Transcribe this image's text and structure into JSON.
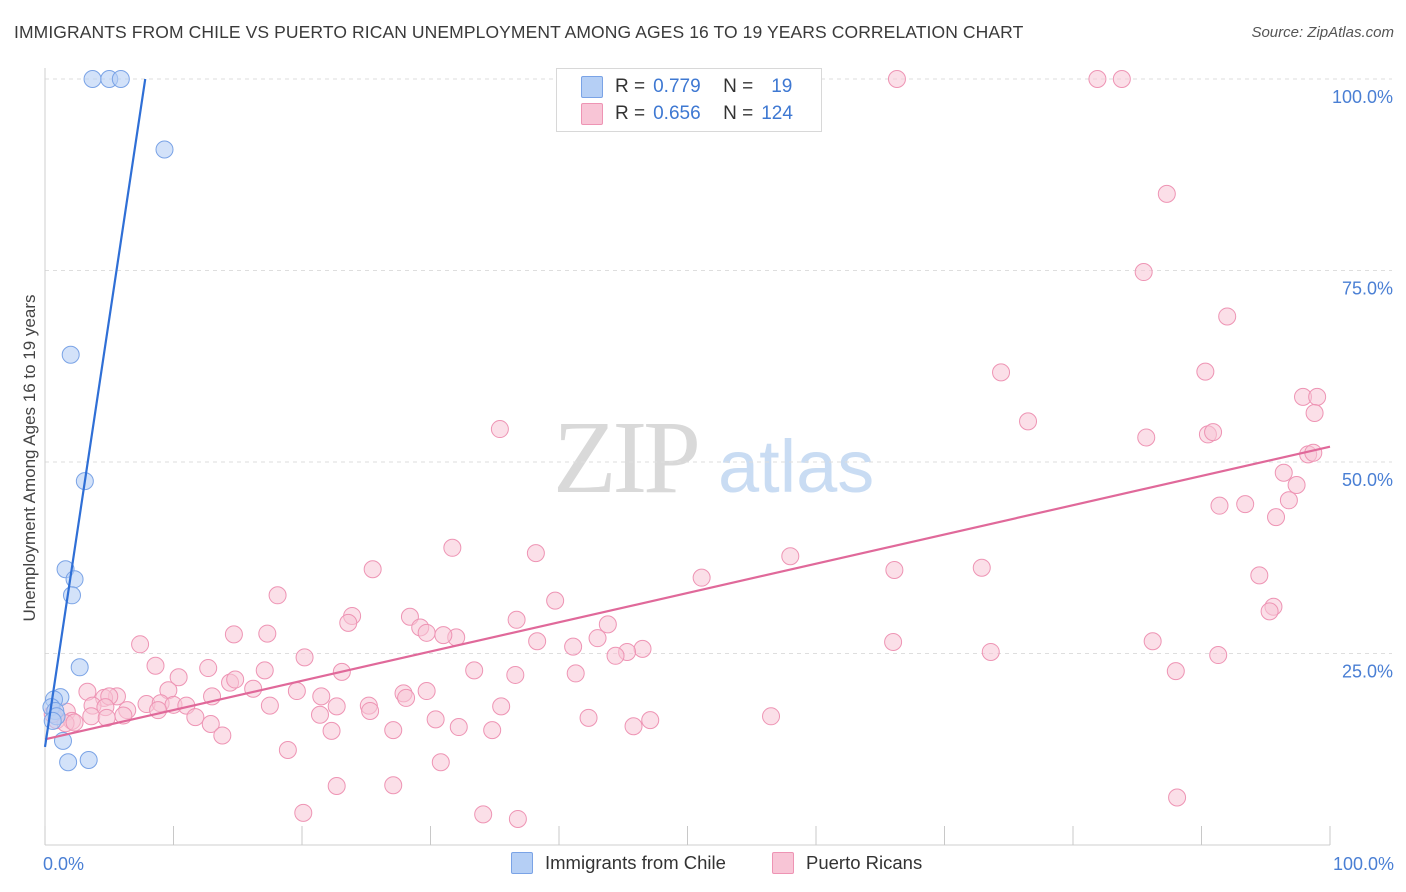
{
  "title": "IMMIGRANTS FROM CHILE VS PUERTO RICAN UNEMPLOYMENT AMONG AGES 16 TO 19 YEARS CORRELATION CHART",
  "source": "Source: ZipAtlas.com",
  "watermark": {
    "zip": "ZIP",
    "atlas": "atlas"
  },
  "legend": {
    "r_label": "R =",
    "n_label": "N =",
    "series": [
      {
        "name": "Immigrants from Chile",
        "r": "0.779",
        "n": "19"
      },
      {
        "name": "Puerto Ricans",
        "r": "0.656",
        "n": "124"
      }
    ]
  },
  "colors": {
    "chile_fill": "#b5cff5",
    "chile_stroke": "#7aa3e6",
    "chile_line": "#2f6fd6",
    "pr_fill": "#f8c5d6",
    "pr_stroke": "#ee94b4",
    "pr_line": "#e0699a",
    "tick_label": "#4a7fd4",
    "grid": "#dedede"
  },
  "chart_data": {
    "type": "scatter",
    "xlabel": "",
    "ylabel": "Unemployment Among Ages 16 to 19 years",
    "xlim": [
      0,
      100
    ],
    "ylim": [
      0,
      100
    ],
    "x_tick_labels": [
      "0.0%",
      "100.0%"
    ],
    "y_ticks": [
      25,
      50,
      75,
      100
    ],
    "y_tick_labels": [
      "25.0%",
      "50.0%",
      "75.0%",
      "100.0%"
    ],
    "grid": true,
    "series": [
      {
        "name": "Immigrants from Chile",
        "r": 0.779,
        "n": 19,
        "trend": {
          "x0": 0,
          "y0": 12.8,
          "x1": 7.8,
          "y1": 100
        },
        "points": [
          [
            3.7,
            100
          ],
          [
            5.0,
            100
          ],
          [
            5.9,
            100
          ],
          [
            9.3,
            90.8
          ],
          [
            2.0,
            64.0
          ],
          [
            3.1,
            47.5
          ],
          [
            1.6,
            36.0
          ],
          [
            2.3,
            34.7
          ],
          [
            2.1,
            32.6
          ],
          [
            2.7,
            23.2
          ],
          [
            1.2,
            19.3
          ],
          [
            0.7,
            19.0
          ],
          [
            0.5,
            18.0
          ],
          [
            0.8,
            17.5
          ],
          [
            0.9,
            16.8
          ],
          [
            0.6,
            16.2
          ],
          [
            1.4,
            13.6
          ],
          [
            1.8,
            10.8
          ],
          [
            3.4,
            11.1
          ]
        ]
      },
      {
        "name": "Puerto Ricans",
        "r": 0.656,
        "n": 124,
        "trend": {
          "x0": 0,
          "y0": 13.8,
          "x1": 100,
          "y1": 52.0
        },
        "points": [
          [
            66.3,
            100
          ],
          [
            81.9,
            100
          ],
          [
            83.8,
            100
          ],
          [
            87.3,
            85.0
          ],
          [
            85.5,
            74.8
          ],
          [
            92.0,
            69.0
          ],
          [
            74.4,
            61.7
          ],
          [
            90.3,
            61.8
          ],
          [
            97.9,
            58.5
          ],
          [
            99.0,
            58.5
          ],
          [
            76.5,
            55.3
          ],
          [
            98.8,
            56.4
          ],
          [
            35.4,
            54.3
          ],
          [
            85.7,
            53.2
          ],
          [
            90.5,
            53.6
          ],
          [
            90.9,
            53.9
          ],
          [
            98.3,
            51.0
          ],
          [
            98.7,
            51.2
          ],
          [
            96.4,
            48.6
          ],
          [
            97.4,
            47.0
          ],
          [
            96.8,
            45.0
          ],
          [
            91.4,
            44.3
          ],
          [
            93.4,
            44.5
          ],
          [
            95.8,
            42.8
          ],
          [
            31.7,
            38.8
          ],
          [
            38.2,
            38.1
          ],
          [
            58.0,
            37.7
          ],
          [
            25.5,
            36.0
          ],
          [
            66.1,
            35.9
          ],
          [
            72.9,
            36.2
          ],
          [
            51.1,
            34.9
          ],
          [
            94.5,
            35.2
          ],
          [
            18.1,
            32.6
          ],
          [
            39.7,
            31.9
          ],
          [
            95.6,
            31.1
          ],
          [
            95.3,
            30.5
          ],
          [
            23.9,
            29.9
          ],
          [
            28.4,
            29.8
          ],
          [
            36.7,
            29.4
          ],
          [
            23.6,
            29.0
          ],
          [
            43.8,
            28.8
          ],
          [
            29.2,
            28.4
          ],
          [
            14.7,
            27.5
          ],
          [
            17.3,
            27.6
          ],
          [
            29.7,
            27.7
          ],
          [
            32.0,
            27.1
          ],
          [
            38.3,
            26.6
          ],
          [
            43.0,
            27.0
          ],
          [
            66.0,
            26.5
          ],
          [
            86.2,
            26.6
          ],
          [
            7.4,
            26.2
          ],
          [
            31.0,
            27.4
          ],
          [
            41.1,
            25.9
          ],
          [
            46.5,
            25.6
          ],
          [
            45.3,
            25.2
          ],
          [
            73.6,
            25.2
          ],
          [
            20.2,
            24.5
          ],
          [
            91.3,
            24.8
          ],
          [
            44.4,
            24.7
          ],
          [
            8.6,
            23.4
          ],
          [
            12.7,
            23.1
          ],
          [
            17.1,
            22.8
          ],
          [
            23.1,
            22.6
          ],
          [
            33.4,
            22.8
          ],
          [
            36.6,
            22.2
          ],
          [
            41.3,
            22.4
          ],
          [
            88.0,
            22.7
          ],
          [
            10.4,
            21.9
          ],
          [
            14.4,
            21.2
          ],
          [
            14.8,
            21.6
          ],
          [
            3.3,
            20.0
          ],
          [
            9.6,
            20.2
          ],
          [
            16.2,
            20.4
          ],
          [
            19.6,
            20.1
          ],
          [
            27.9,
            19.8
          ],
          [
            29.7,
            20.1
          ],
          [
            5.6,
            19.4
          ],
          [
            4.6,
            19.2
          ],
          [
            5.0,
            19.4
          ],
          [
            13.0,
            19.4
          ],
          [
            21.5,
            19.4
          ],
          [
            28.1,
            19.2
          ],
          [
            7.9,
            18.4
          ],
          [
            9.0,
            18.5
          ],
          [
            10.0,
            18.3
          ],
          [
            3.7,
            18.2
          ],
          [
            4.7,
            18.0
          ],
          [
            17.5,
            18.2
          ],
          [
            22.7,
            18.1
          ],
          [
            35.5,
            18.1
          ],
          [
            25.2,
            18.2
          ],
          [
            6.4,
            17.6
          ],
          [
            6.1,
            16.9
          ],
          [
            11.0,
            18.2
          ],
          [
            8.8,
            17.6
          ],
          [
            1.7,
            17.4
          ],
          [
            0.9,
            16.3
          ],
          [
            2.1,
            16.2
          ],
          [
            3.6,
            16.8
          ],
          [
            11.7,
            16.7
          ],
          [
            4.8,
            16.6
          ],
          [
            21.4,
            17.0
          ],
          [
            25.3,
            17.5
          ],
          [
            30.4,
            16.4
          ],
          [
            1.6,
            15.9
          ],
          [
            2.3,
            16.0
          ],
          [
            0.6,
            17.1
          ],
          [
            12.9,
            15.8
          ],
          [
            32.2,
            15.4
          ],
          [
            22.3,
            14.9
          ],
          [
            27.1,
            15.0
          ],
          [
            34.8,
            15.0
          ],
          [
            56.5,
            16.8
          ],
          [
            42.3,
            16.6
          ],
          [
            47.1,
            16.3
          ],
          [
            45.8,
            15.5
          ],
          [
            13.8,
            14.3
          ],
          [
            18.9,
            12.4
          ],
          [
            30.8,
            10.8
          ],
          [
            20.1,
            4.2
          ],
          [
            22.7,
            7.7
          ],
          [
            27.1,
            7.8
          ],
          [
            34.1,
            4.0
          ],
          [
            36.8,
            3.4
          ],
          [
            88.1,
            6.2
          ]
        ]
      }
    ]
  }
}
